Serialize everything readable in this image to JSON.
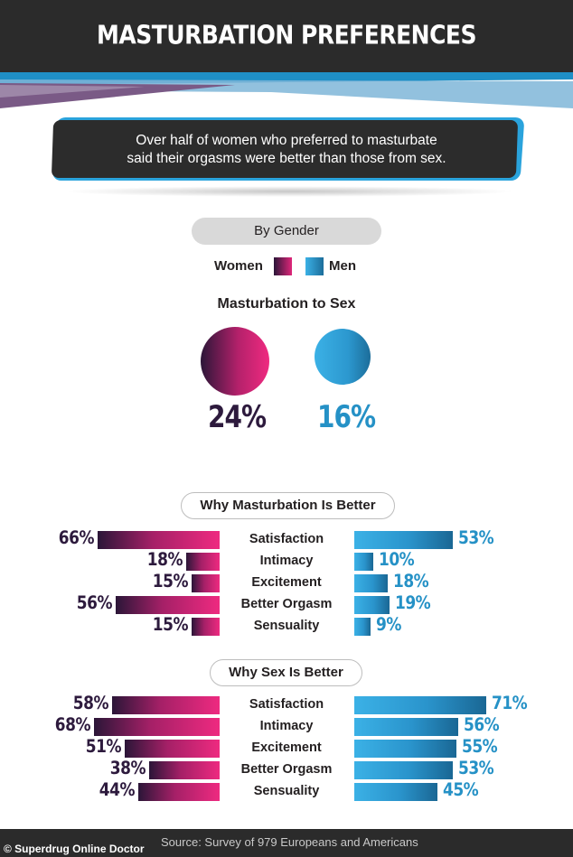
{
  "title": "MASTURBATION PREFERENCES",
  "quote": {
    "line1": "Over half of women who preferred to masturbate",
    "line2": "said their orgasms were better than those from sex."
  },
  "gender_label": "By Gender",
  "legend": {
    "women": "Women",
    "men": "Men"
  },
  "colors": {
    "women": "#e0267a",
    "women_dark": "#2b1638",
    "men": "#2a9bd4",
    "men_dark": "#1a6794",
    "header": "#2b2b2b"
  },
  "chart_data": [
    {
      "type": "bubble",
      "title": "Masturbation to Sex",
      "categories": [
        "Women",
        "Men"
      ],
      "values": [
        24,
        16
      ],
      "labels": [
        "24%",
        "16%"
      ]
    },
    {
      "type": "bar",
      "title": "Why Masturbation Is Better",
      "categories": [
        "Satisfaction",
        "Intimacy",
        "Excitement",
        "Better Orgasm",
        "Sensuality"
      ],
      "series": [
        {
          "name": "Women",
          "values": [
            66,
            18,
            15,
            56,
            15
          ]
        },
        {
          "name": "Men",
          "values": [
            53,
            10,
            18,
            19,
            9
          ]
        }
      ]
    },
    {
      "type": "bar",
      "title": "Why Sex Is Better",
      "categories": [
        "Satisfaction",
        "Intimacy",
        "Excitement",
        "Better Orgasm",
        "Sensuality"
      ],
      "series": [
        {
          "name": "Women",
          "values": [
            58,
            68,
            51,
            38,
            44
          ]
        },
        {
          "name": "Men",
          "values": [
            71,
            56,
            55,
            53,
            45
          ]
        }
      ]
    }
  ],
  "footer": {
    "credit": "© Superdrug Online Doctor",
    "source": "Source: Survey of 979 Europeans and Americans"
  }
}
